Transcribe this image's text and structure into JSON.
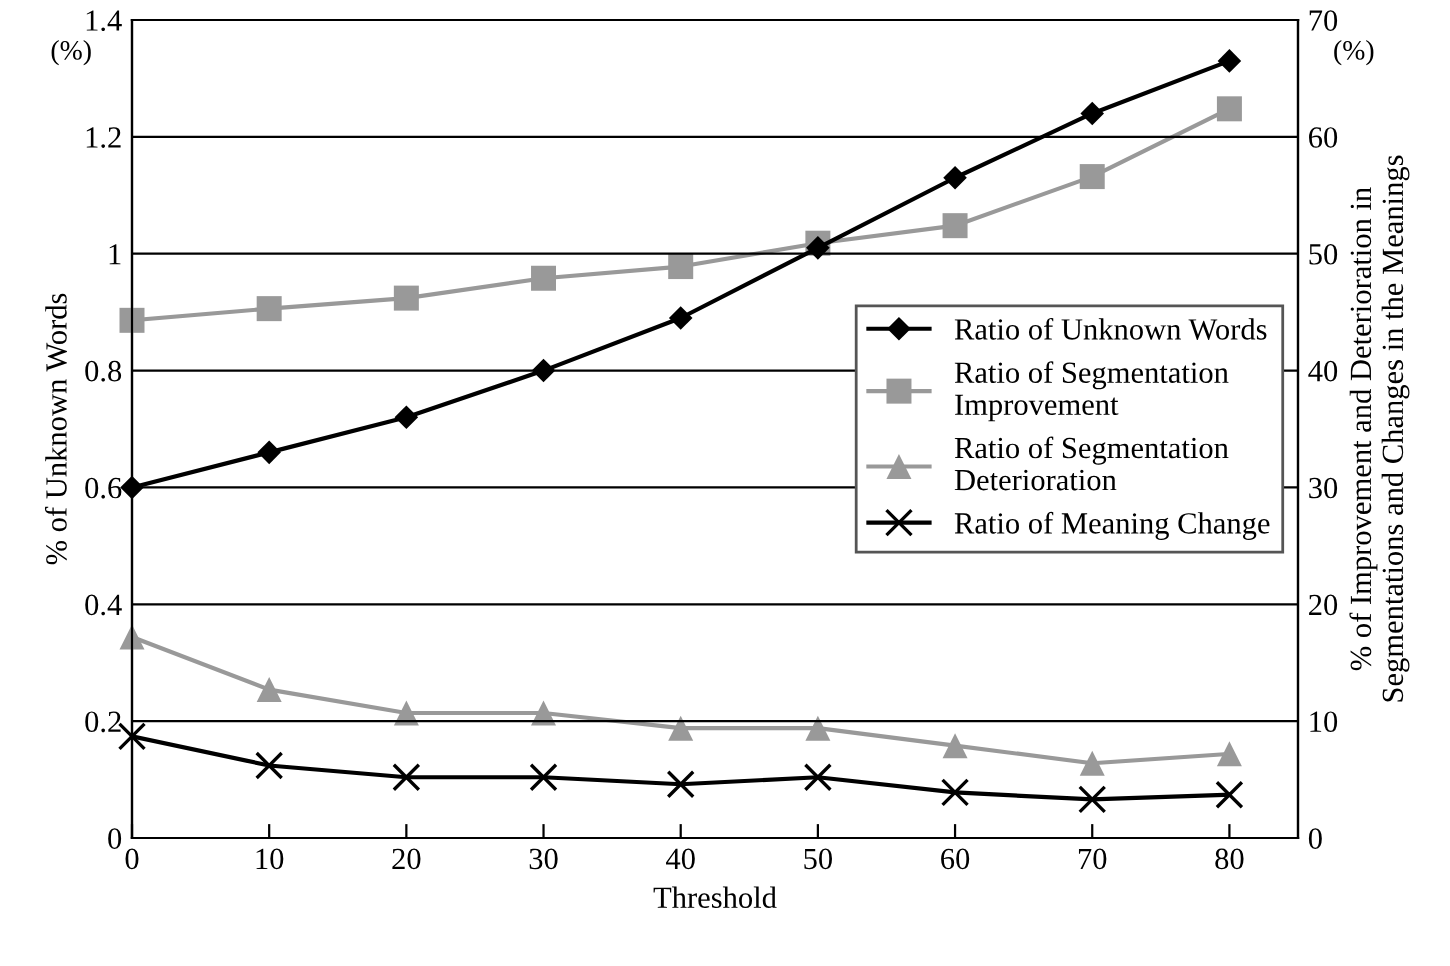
{
  "chart_data": {
    "type": "line",
    "xlabel": "Threshold",
    "ylabel": "% of Unknown Words",
    "y2label": "% of Improvement and Deterioration in\nSegmentations and Changes in the Meanings",
    "annotations": [
      "(%)",
      "(%)"
    ],
    "x": [
      0,
      10,
      20,
      30,
      40,
      50,
      60,
      70,
      80
    ],
    "xlim": [
      0,
      85
    ],
    "xticks": [
      0,
      10,
      20,
      30,
      40,
      50,
      60,
      70,
      80
    ],
    "ylim": [
      0,
      1.4
    ],
    "yticks": [
      {
        "value": 0,
        "label": "0"
      },
      0.2,
      0.4,
      0.6,
      0.8,
      {
        "value": 1,
        "label": "1"
      },
      1.2,
      1.4
    ],
    "y2lim": [
      0,
      70
    ],
    "y2ticks": [
      0,
      10,
      20,
      30,
      40,
      50,
      60,
      70
    ],
    "grid": "y",
    "legend": "right",
    "line_style": "solid",
    "series": [
      {
        "name": "Ratio of Unknown Words",
        "color": "#000000",
        "marker": "diamond",
        "values": [
          0.6,
          0.66,
          0.72,
          0.8,
          0.89,
          1.01,
          1.13,
          1.24,
          1.33
        ]
      },
      {
        "name": "Ratio of Segmentation\nImprovement",
        "color": "#999999",
        "marker": "square",
        "axis": "y2",
        "values": [
          44.3,
          45.3,
          46.2,
          47.9,
          48.9,
          50.9,
          52.4,
          56.6,
          62.4
        ]
      },
      {
        "name": "Ratio of Segmentation\nDeterioration",
        "color": "#999999",
        "marker": "triangle",
        "axis": "y2",
        "values": [
          17.2,
          12.7,
          10.7,
          10.7,
          9.4,
          9.4,
          7.9,
          6.4,
          7.2
        ]
      },
      {
        "name": "Ratio of Meaning Change",
        "color": "#000000",
        "marker": "cross",
        "axis": "y2",
        "values": [
          8.7,
          6.2,
          5.2,
          5.2,
          4.6,
          5.2,
          3.9,
          3.3,
          3.7
        ]
      }
    ]
  }
}
